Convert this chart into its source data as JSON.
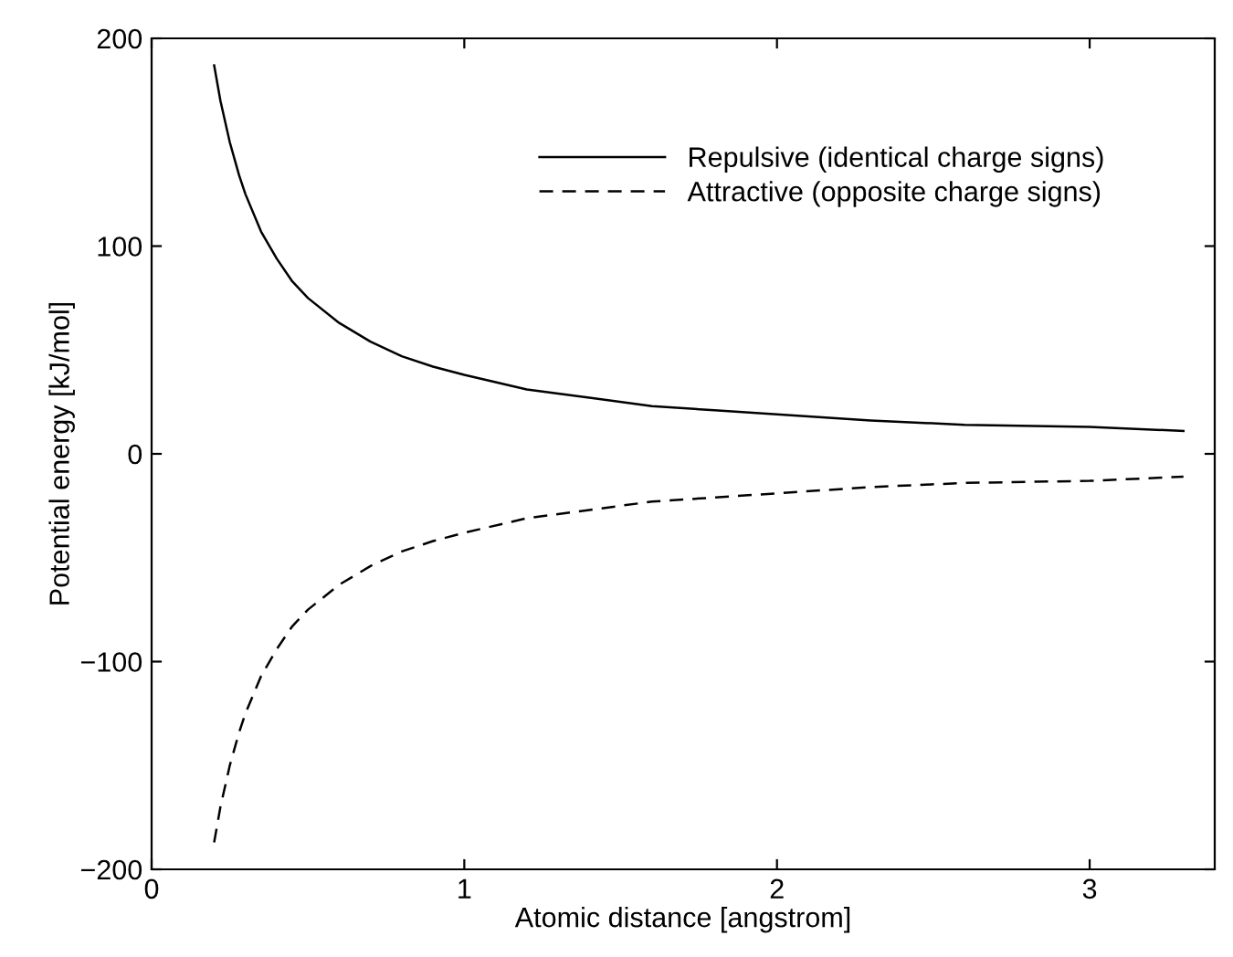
{
  "chart_data": {
    "type": "line",
    "xlabel": "Atomic distance [angstrom]",
    "ylabel": "Potential energy [kJ/mol]",
    "x": [
      0.2,
      0.22,
      0.25,
      0.28,
      0.3,
      0.35,
      0.4,
      0.45,
      0.5,
      0.6,
      0.7,
      0.8,
      0.9,
      1.0,
      1.2,
      1.4,
      1.6,
      1.8,
      2.0,
      2.3,
      2.6,
      3.0,
      3.3
    ],
    "series": [
      {
        "name": "Repulsive (identical charge signs)",
        "color": "#000000",
        "line_style": "solid",
        "values": [
          187,
          170,
          150,
          134,
          125,
          107,
          94,
          83,
          75,
          63,
          54,
          47,
          42,
          38,
          31,
          27,
          23,
          21,
          19,
          16,
          14,
          13,
          11
        ]
      },
      {
        "name": "Attractive (opposite charge signs)",
        "color": "#000000",
        "line_style": "dashed",
        "values": [
          -187,
          -170,
          -150,
          -134,
          -125,
          -107,
          -94,
          -83,
          -75,
          -63,
          -54,
          -47,
          -42,
          -38,
          -31,
          -27,
          -23,
          -21,
          -19,
          -16,
          -14,
          -13,
          -11
        ]
      }
    ],
    "xlim": [
      0,
      3.4
    ],
    "xticks": [
      0,
      1,
      2,
      3
    ],
    "ylim": [
      -200,
      200
    ],
    "yticks": [
      -200,
      -100,
      0,
      100,
      200
    ],
    "grid": false,
    "legend": "top right",
    "marker": "none"
  }
}
